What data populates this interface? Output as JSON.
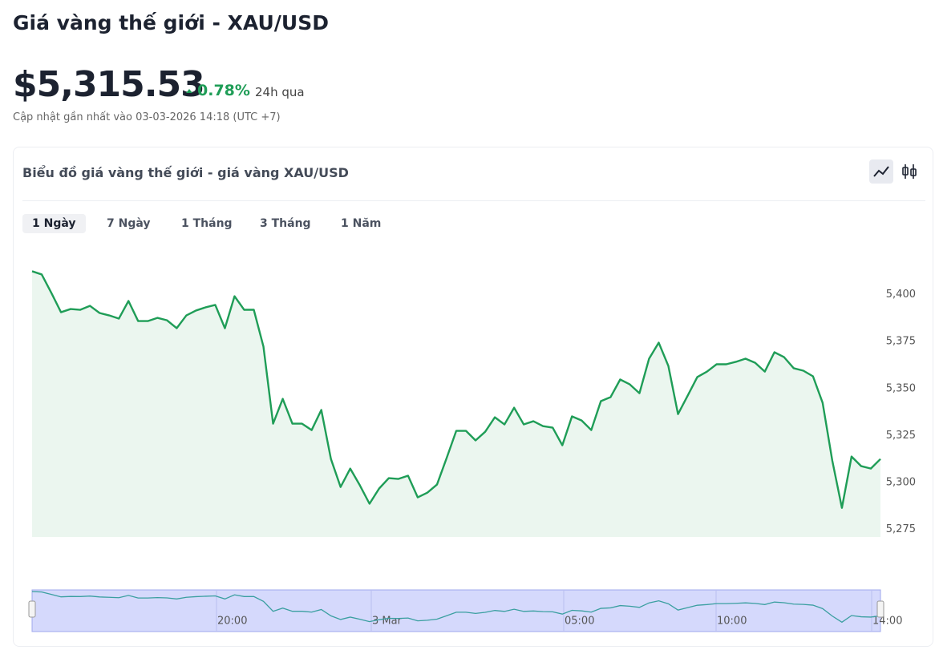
{
  "header": {
    "title": "Giá vàng thế giới - XAU/USD",
    "price": "$5,315.53",
    "change": "0.78%",
    "change_period": "24h qua",
    "updated": "Cập nhật gần nhất vào 03-03-2026 14:18 (UTC +7)"
  },
  "tabs": [
    "1 Ngày",
    "7 Ngày",
    "1 Tháng",
    "3 Tháng",
    "1 Năm"
  ],
  "chart_data": {
    "type": "area",
    "title": "Biểu đồ giá vàng thế giới - giá vàng XAU/USD",
    "color": "#1f9d57",
    "values": [
      5412.4,
      5410.7,
      5400.9,
      5390.6,
      5392.3,
      5391.9,
      5394.0,
      5390.2,
      5388.9,
      5387.2,
      5396.6,
      5385.9,
      5385.9,
      5387.6,
      5386.3,
      5382.1,
      5388.9,
      5391.5,
      5393.2,
      5394.5,
      5382.1,
      5399.1,
      5391.9,
      5391.9,
      5372.3,
      5331.3,
      5344.5,
      5331.3,
      5331.3,
      5327.9,
      5338.6,
      5312.5,
      5297.6,
      5307.4,
      5298.5,
      5288.7,
      5296.8,
      5302.3,
      5301.9,
      5303.6,
      5292.1,
      5294.6,
      5298.9,
      5313.0,
      5327.5,
      5327.5,
      5322.4,
      5327.0,
      5334.7,
      5330.9,
      5339.8,
      5330.9,
      5332.6,
      5330.0,
      5329.2,
      5319.8,
      5335.2,
      5333.0,
      5327.9,
      5343.3,
      5345.4,
      5354.8,
      5352.2,
      5347.5,
      5365.9,
      5374.4,
      5362.0,
      5336.4,
      5346.2,
      5356.1,
      5359.0,
      5362.9,
      5362.9,
      5364.2,
      5365.9,
      5363.7,
      5359.0,
      5369.3,
      5366.7,
      5360.8,
      5359.5,
      5356.5,
      5342.4,
      5311.7,
      5286.5,
      5313.8,
      5308.7,
      5307.4,
      5312.5
    ],
    "ylim": [
      5271,
      5416
    ],
    "yticks": [
      {
        "value": 5275,
        "label": "5,275"
      },
      {
        "value": 5300,
        "label": "5,300"
      },
      {
        "value": 5325,
        "label": "5,325"
      },
      {
        "value": 5350,
        "label": "5,350"
      },
      {
        "value": 5375,
        "label": "5,375"
      },
      {
        "value": 5400,
        "label": "5,400"
      }
    ],
    "navigator_labels": [
      "20:00",
      "3 Mar",
      "05:00",
      "10:00",
      "14:00"
    ]
  }
}
